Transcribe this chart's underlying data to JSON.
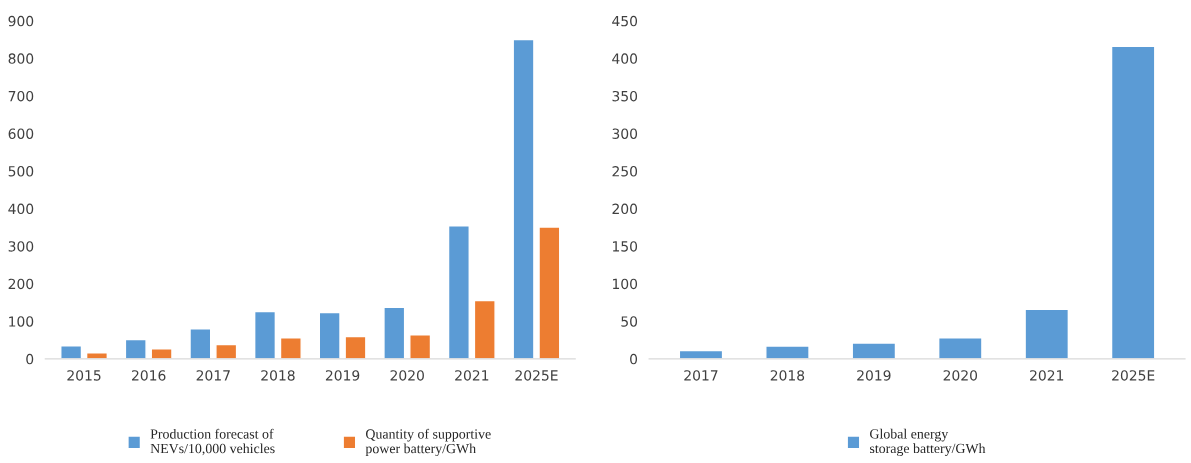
{
  "chart_data": [
    {
      "type": "bar",
      "categories": [
        "2015",
        "2016",
        "2017",
        "2018",
        "2019",
        "2020",
        "2021",
        "2025E"
      ],
      "series": [
        {
          "name": "Production forecast of NEVs/10,000 vehicles",
          "color": "#5b9bd5",
          "values": [
            35,
            51,
            80,
            126,
            123,
            137,
            354,
            850
          ]
        },
        {
          "name": "Quantity of supportive power battery/GWh",
          "color": "#ed7d31",
          "values": [
            16,
            27,
            38,
            56,
            59,
            64,
            155,
            351
          ]
        }
      ],
      "ylim": [
        0,
        900
      ],
      "yticks": [
        0,
        100,
        200,
        300,
        400,
        500,
        600,
        700,
        800,
        900
      ],
      "grid": false,
      "legend": "bottom"
    },
    {
      "type": "bar",
      "categories": [
        "2017",
        "2018",
        "2019",
        "2020",
        "2021",
        "2025E"
      ],
      "series": [
        {
          "name": "Global energy storage battery/GWh",
          "color": "#5b9bd5",
          "values": [
            11,
            17,
            21,
            28,
            66,
            416
          ]
        }
      ],
      "ylim": [
        0,
        450
      ],
      "yticks": [
        0,
        50,
        100,
        150,
        200,
        250,
        300,
        350,
        400,
        450
      ],
      "grid": false,
      "legend": "bottom"
    }
  ]
}
